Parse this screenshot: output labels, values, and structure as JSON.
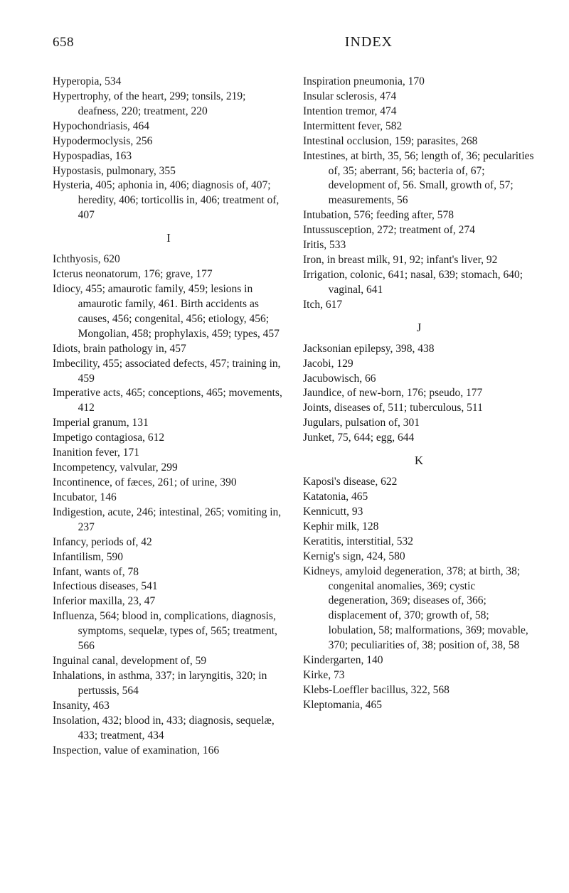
{
  "header": {
    "page_number": "658",
    "title": "INDEX"
  },
  "left_column": [
    {
      "t": "entry",
      "text": "Hyperopia, 534"
    },
    {
      "t": "entry",
      "text": "Hypertrophy, of the heart, 299; tonsils, 219; deafness, 220; treatment, 220"
    },
    {
      "t": "entry",
      "text": "Hypochondriasis, 464"
    },
    {
      "t": "entry",
      "text": "Hypodermoclysis, 256"
    },
    {
      "t": "entry",
      "text": "Hypospadias, 163"
    },
    {
      "t": "entry",
      "text": "Hypostasis, pulmonary, 355"
    },
    {
      "t": "entry",
      "text": "Hysteria, 405; aphonia in, 406; diagnosis of, 407; heredity, 406; torticollis in, 406; treatment of, 407"
    },
    {
      "t": "letter",
      "text": "I"
    },
    {
      "t": "entry",
      "text": "Ichthyosis, 620"
    },
    {
      "t": "entry",
      "text": "Icterus neonatorum, 176; grave, 177"
    },
    {
      "t": "entry",
      "text": "Idiocy, 455; amaurotic family, 459; lesions in amaurotic family, 461. Birth accidents as causes, 456; congenital, 456; etiology, 456; Mongolian, 458; prophylaxis, 459; types, 457"
    },
    {
      "t": "entry",
      "text": "Idiots, brain pathology in, 457"
    },
    {
      "t": "entry",
      "text": "Imbecility, 455; associated defects, 457; training in, 459"
    },
    {
      "t": "entry",
      "text": "Imperative acts, 465; conceptions, 465; movements, 412"
    },
    {
      "t": "entry",
      "text": "Imperial granum, 131"
    },
    {
      "t": "entry",
      "text": "Impetigo contagiosa, 612"
    },
    {
      "t": "entry",
      "text": "Inanition fever, 171"
    },
    {
      "t": "entry",
      "text": "Incompetency, valvular, 299"
    },
    {
      "t": "entry",
      "text": "Incontinence, of fæces, 261; of urine, 390"
    },
    {
      "t": "entry",
      "text": "Incubator, 146"
    },
    {
      "t": "entry",
      "text": "Indigestion, acute, 246; intestinal, 265; vomiting in, 237"
    },
    {
      "t": "entry",
      "text": "Infancy, periods of, 42"
    },
    {
      "t": "entry",
      "text": "Infantilism, 590"
    },
    {
      "t": "entry",
      "text": "Infant, wants of, 78"
    },
    {
      "t": "entry",
      "text": "Infectious diseases, 541"
    },
    {
      "t": "entry",
      "text": "Inferior maxilla, 23, 47"
    },
    {
      "t": "entry",
      "text": "Influenza, 564; blood in, complications, diagnosis, symptoms, sequelæ, types of, 565; treatment, 566"
    },
    {
      "t": "entry",
      "text": "Inguinal canal, development of, 59"
    },
    {
      "t": "entry",
      "text": "Inhalations, in asthma, 337; in laryngitis, 320; in pertussis, 564"
    },
    {
      "t": "entry",
      "text": "Insanity, 463"
    },
    {
      "t": "entry",
      "text": "Insolation, 432; blood in, 433; diagnosis, sequelæ, 433; treatment, 434"
    },
    {
      "t": "entry",
      "text": "Inspection, value of examination, 166"
    }
  ],
  "right_column": [
    {
      "t": "entry",
      "text": "Inspiration pneumonia, 170"
    },
    {
      "t": "entry",
      "text": "Insular sclerosis, 474"
    },
    {
      "t": "entry",
      "text": "Intention tremor, 474"
    },
    {
      "t": "entry",
      "text": "Intermittent fever, 582"
    },
    {
      "t": "entry",
      "text": "Intestinal occlusion, 159; parasites, 268"
    },
    {
      "t": "entry",
      "text": "Intestines, at birth, 35, 56; length of, 36; pecularities of, 35; aberrant, 56; bacteria of, 67; development of, 56. Small, growth of, 57; measurements, 56"
    },
    {
      "t": "entry",
      "text": "Intubation, 576; feeding after, 578"
    },
    {
      "t": "entry",
      "text": "Intussusception, 272; treatment of, 274"
    },
    {
      "t": "entry",
      "text": "Iritis, 533"
    },
    {
      "t": "entry",
      "text": "Iron, in breast milk, 91, 92; infant's liver, 92"
    },
    {
      "t": "entry",
      "text": "Irrigation, colonic, 641; nasal, 639; stomach, 640; vaginal, 641"
    },
    {
      "t": "entry",
      "text": "Itch, 617"
    },
    {
      "t": "letter",
      "text": "J"
    },
    {
      "t": "entry",
      "text": "Jacksonian epilepsy, 398, 438"
    },
    {
      "t": "entry",
      "text": "Jacobi, 129"
    },
    {
      "t": "entry",
      "text": "Jacubowisch, 66"
    },
    {
      "t": "entry",
      "text": "Jaundice, of new-born, 176; pseudo, 177"
    },
    {
      "t": "entry",
      "text": "Joints, diseases of, 511; tuberculous, 511"
    },
    {
      "t": "entry",
      "text": "Jugulars, pulsation of, 301"
    },
    {
      "t": "entry",
      "text": "Junket, 75, 644; egg, 644"
    },
    {
      "t": "letter",
      "text": "K"
    },
    {
      "t": "entry",
      "text": "Kaposi's disease, 622"
    },
    {
      "t": "entry",
      "text": "Katatonia, 465"
    },
    {
      "t": "entry",
      "text": "Kennicutt, 93"
    },
    {
      "t": "entry",
      "text": "Kephir milk, 128"
    },
    {
      "t": "entry",
      "text": "Keratitis, interstitial, 532"
    },
    {
      "t": "entry",
      "text": "Kernig's sign, 424, 580"
    },
    {
      "t": "entry",
      "text": "Kidneys, amyloid degeneration, 378; at birth, 38; congenital anomalies, 369; cystic degeneration, 369; diseases of, 366; displacement of, 370; growth of, 58; lobulation, 58; malformations, 369; movable, 370; peculiarities of, 38; position of, 38, 58"
    },
    {
      "t": "entry",
      "text": "Kindergarten, 140"
    },
    {
      "t": "entry",
      "text": "Kirke, 73"
    },
    {
      "t": "entry",
      "text": "Klebs-Loeffler bacillus, 322, 568"
    },
    {
      "t": "entry",
      "text": "Kleptomania, 465"
    }
  ]
}
